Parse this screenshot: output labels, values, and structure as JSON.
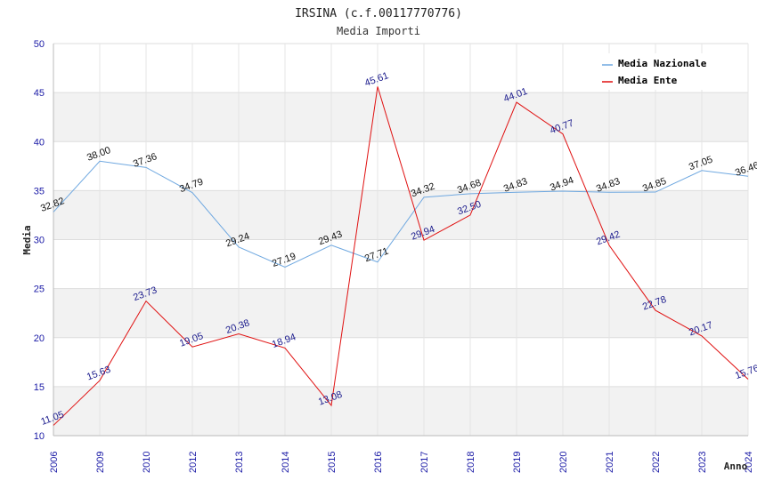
{
  "chart_data": {
    "type": "line",
    "title": "IRSINA (c.f.00117770776)",
    "subtitle": "Media Importi",
    "xlabel": "Anno",
    "ylabel": "Media",
    "ylim": [
      10,
      50
    ],
    "yticks": [
      "10",
      "15",
      "20",
      "25",
      "30",
      "35",
      "40",
      "45",
      "50"
    ],
    "categories": [
      "2006",
      "2009",
      "2010",
      "2012",
      "2013",
      "2014",
      "2015",
      "2016",
      "2017",
      "2018",
      "2019",
      "2020",
      "2021",
      "2022",
      "2023",
      "2024"
    ],
    "legend_position": "top-right",
    "series": [
      {
        "name": "Media Nazionale",
        "color": "#6fa8e0",
        "label_color": "#111111",
        "values": [
          32.82,
          38.0,
          37.36,
          34.79,
          29.24,
          27.19,
          29.43,
          27.71,
          34.32,
          34.68,
          34.83,
          34.94,
          34.83,
          34.85,
          37.05,
          36.46
        ],
        "labels": [
          "32.82",
          "38.00",
          "37.36",
          "34.79",
          "29.24",
          "27.19",
          "29.43",
          "27.71",
          "34.32",
          "34.68",
          "34.83",
          "34.94",
          "34.83",
          "34.85",
          "37.05",
          "36.46"
        ]
      },
      {
        "name": "Media Ente",
        "color": "#e01010",
        "label_color": "#1a1a8c",
        "values": [
          11.05,
          15.63,
          23.73,
          19.05,
          20.38,
          18.94,
          13.08,
          45.61,
          29.94,
          32.5,
          44.01,
          40.77,
          29.42,
          22.78,
          20.17,
          15.76
        ],
        "labels": [
          "11.05",
          "15.63",
          "23.73",
          "19.05",
          "20.38",
          "18.94",
          "13.08",
          "45.61",
          "29.94",
          "32.50",
          "44.01",
          "40.77",
          "29.42",
          "22.78",
          "20.17",
          "15.76"
        ]
      }
    ]
  }
}
